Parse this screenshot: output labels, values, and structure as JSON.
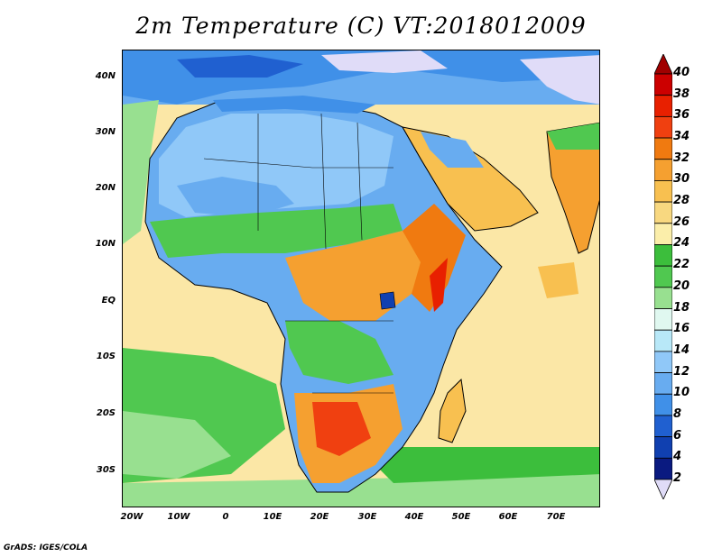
{
  "title": "2m Temperature (C) VT:2018012009",
  "credit": "GrADS: IGES/COLA",
  "map": {
    "lat_labels": [
      "40N",
      "30N",
      "20N",
      "10N",
      "EQ",
      "10S",
      "20S",
      "30S"
    ],
    "lon_labels": [
      "20W",
      "10W",
      "0",
      "10E",
      "20E",
      "30E",
      "40E",
      "50E",
      "60E",
      "70E"
    ]
  },
  "colorbar": {
    "labels": [
      "40",
      "38",
      "36",
      "34",
      "32",
      "30",
      "28",
      "26",
      "24",
      "22",
      "20",
      "18",
      "16",
      "14",
      "12",
      "10",
      "8",
      "6",
      "4",
      "2"
    ],
    "colors_top_to_bottom": [
      "#a00000",
      "#cc0000",
      "#e82000",
      "#f04010",
      "#f07a10",
      "#f5a030",
      "#f8c050",
      "#f8d880",
      "#fbeeaa",
      "#3cbe3c",
      "#50c850",
      "#98e090",
      "#e0f8f0",
      "#b8e8f8",
      "#90c8f8",
      "#68acf0",
      "#4090e8",
      "#2060d0",
      "#1040b0",
      "#0a1a80",
      "#e0dcf8"
    ]
  }
}
